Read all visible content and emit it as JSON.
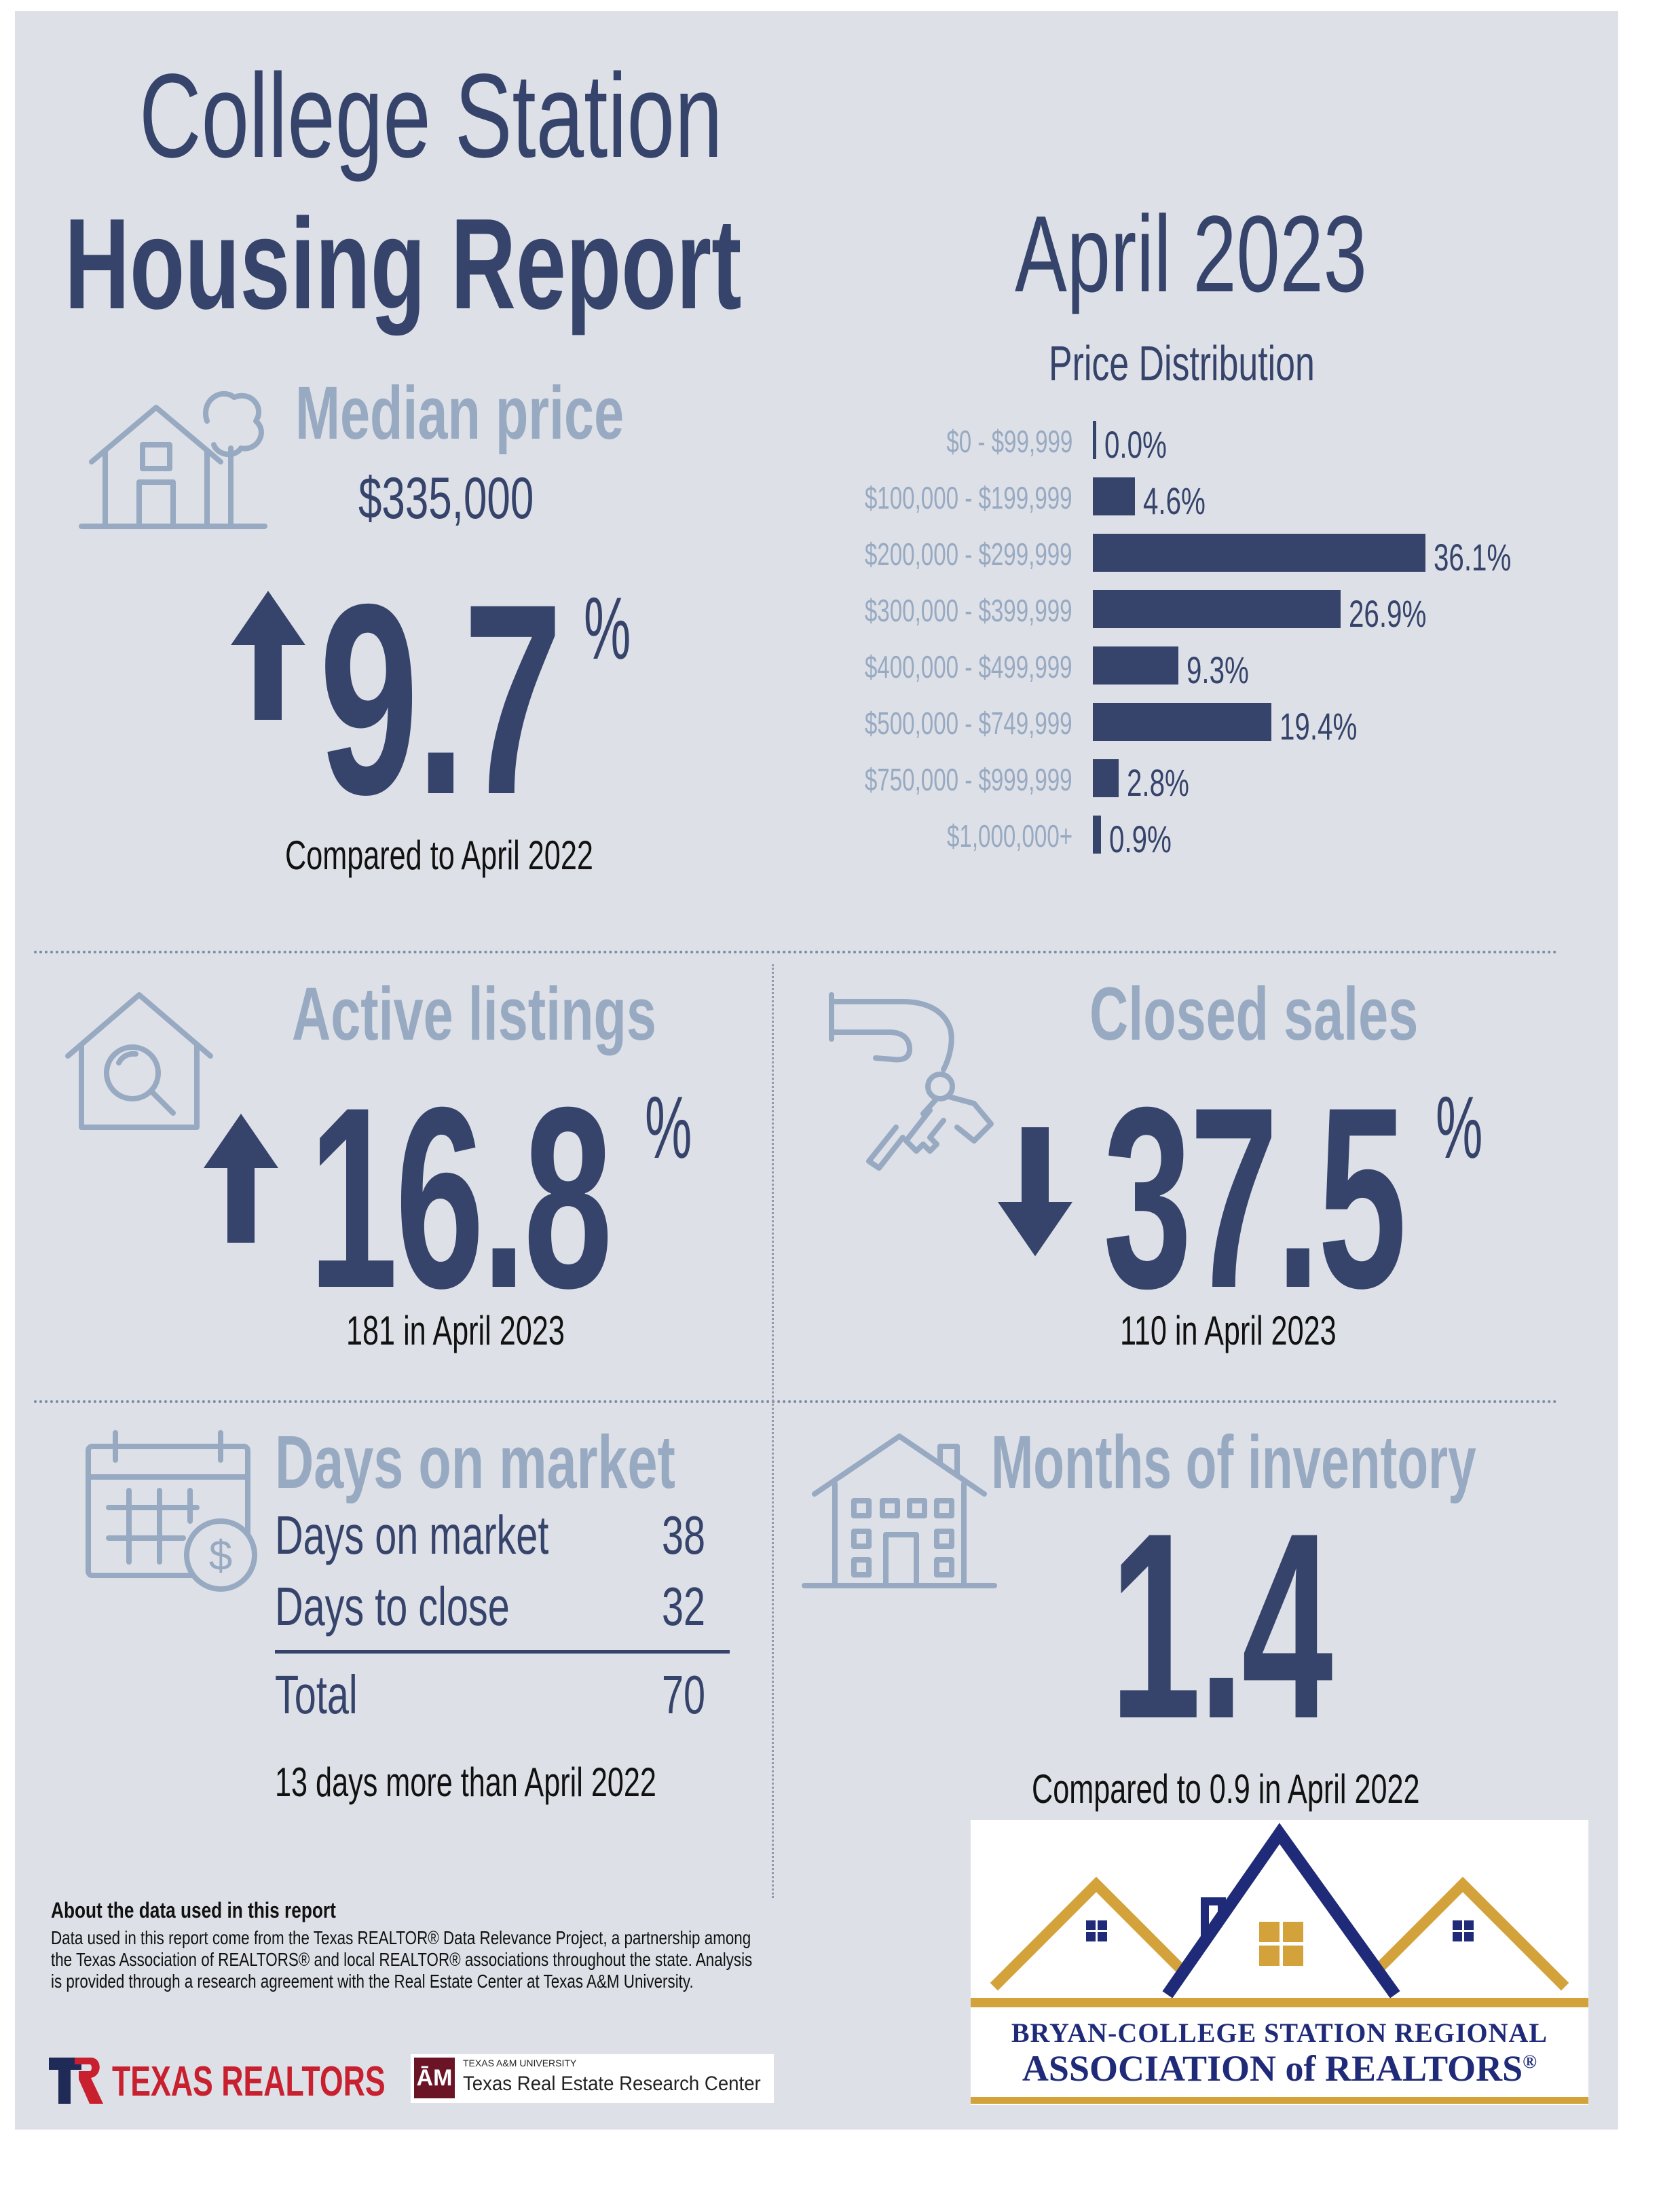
{
  "header": {
    "title_line1": "College Station",
    "title_line2": "Housing Report",
    "period": "April 2023"
  },
  "median_price": {
    "title": "Median price",
    "value": "$335,000",
    "change": "9.7",
    "unit": "%",
    "direction": "up",
    "caption": "Compared to April 2022",
    "icon": "house-tree-icon"
  },
  "price_distribution": {
    "title": "Price Distribution"
  },
  "chart_data": {
    "type": "bar",
    "orientation": "horizontal",
    "title": "Price Distribution",
    "categories": [
      "$0 - $99,999",
      "$100,000 - $199,999",
      "$200,000 - $299,999",
      "$300,000 - $399,999",
      "$400,000 - $499,999",
      "$500,000 - $749,999",
      "$750,000 - $999,999",
      "$1,000,000+"
    ],
    "values": [
      0.0,
      4.6,
      36.1,
      26.9,
      9.3,
      19.4,
      2.8,
      0.9
    ],
    "value_labels": [
      "0.0%",
      "4.6%",
      "36.1%",
      "26.9%",
      "9.3%",
      "19.4%",
      "2.8%",
      "0.9%"
    ],
    "xlim": [
      0,
      36.1
    ],
    "grid": false,
    "legend": "none"
  },
  "active_listings": {
    "title": "Active listings",
    "change": "16.8",
    "unit": "%",
    "direction": "up",
    "caption": "181 in April 2023",
    "icon": "house-search-icon"
  },
  "closed_sales": {
    "title": "Closed sales",
    "change": "37.5",
    "unit": "%",
    "direction": "down",
    "caption": "110 in April 2023",
    "icon": "hand-keys-icon"
  },
  "days_on_market": {
    "title": "Days on market",
    "rows": [
      {
        "label": "Days on market",
        "value": "38"
      },
      {
        "label": "Days to close",
        "value": "32"
      }
    ],
    "total": {
      "label": "Total",
      "value": "70"
    },
    "caption": "13 days more than April 2022",
    "icon": "calendar-dollar-icon"
  },
  "months_inventory": {
    "title": "Months of inventory",
    "value": "1.4",
    "caption": "Compared to 0.9 in April 2022",
    "icon": "apartment-building-icon"
  },
  "about": {
    "title": "About the data used in this report",
    "text": "Data used in this report come from the Texas REALTOR® Data Relevance Project, a partnership among the Texas Association of REALTORS® and local REALTOR® associations throughout the state. Analysis is provided through a research agreement with the Real Estate Center at Texas A&M University."
  },
  "logos": {
    "texas_realtors": "TEXAS REALTORS",
    "tamu_small": "TEXAS A&M UNIVERSITY",
    "tamu_center": "Texas Real Estate Research Center",
    "bcs_line1": "BRYAN-COLLEGE STATION REGIONAL",
    "bcs_line2": "ASSOCIATION of REALTORS",
    "bcs_mark": "®"
  },
  "colors": {
    "navy": "#36436b",
    "steel": "#98a9c2",
    "panel": "#dde1e7",
    "gold": "#d3a23a"
  }
}
